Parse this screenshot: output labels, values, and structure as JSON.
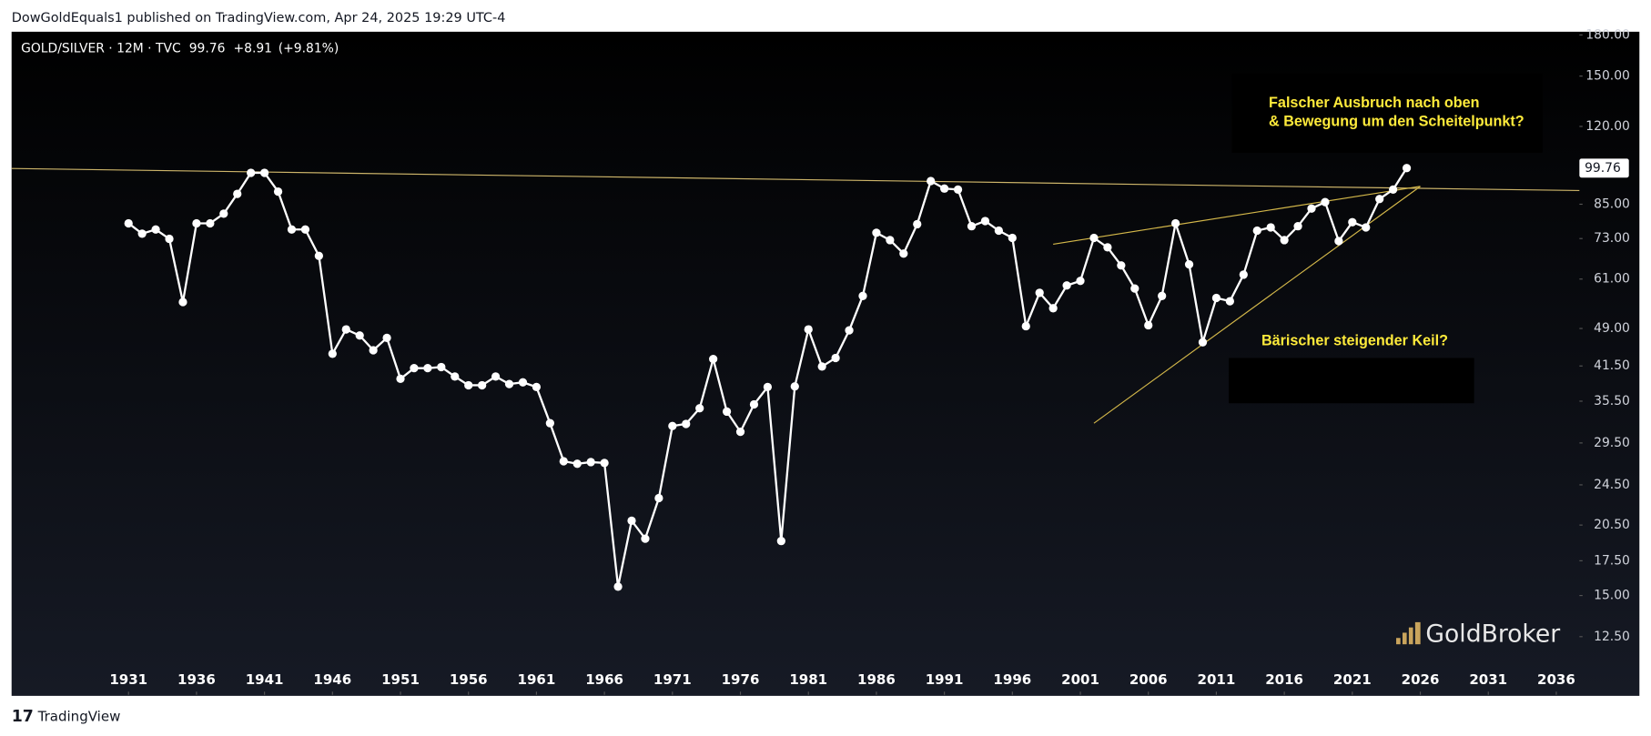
{
  "header": "DowGoldEquals1 published on TradingView.com, Apr 24, 2025 19:29 UTC-4",
  "footer": "TradingView",
  "watermark": "GoldBroker",
  "chart_data": {
    "type": "line",
    "log_scale": true,
    "grid": false,
    "legend": {
      "symbol": "GOLD/SILVER · 12M · TVC",
      "change": "+8.91",
      "change_pct": "(+9.81%)"
    },
    "annotations": [
      "Falscher Ausbruch nach oben",
      "& Bewegung um den Scheitelpunkt?",
      "Bärischer steigender Keil?"
    ],
    "xlim": [
      1922.4,
      2037.7
    ],
    "xticks": [
      1931,
      1936,
      1941,
      1946,
      1951,
      1956,
      1961,
      1966,
      1971,
      1976,
      1981,
      1986,
      1991,
      1996,
      2001,
      2006,
      2011,
      2016,
      2021,
      2026,
      2031,
      2036
    ],
    "ylim": [
      9.66,
      182.6
    ],
    "yticks": [
      {
        "value": 12.5,
        "label": "12.50"
      },
      {
        "value": 15,
        "label": "15.00"
      },
      {
        "value": 17.5,
        "label": "17.50"
      },
      {
        "value": 20.5,
        "label": "20.50"
      },
      {
        "value": 24.5,
        "label": "24.50"
      },
      {
        "value": 29.5,
        "label": "29.50"
      },
      {
        "value": 35.5,
        "label": "35.50"
      },
      {
        "value": 41.5,
        "label": "41.50"
      },
      {
        "value": 49,
        "label": "49.00"
      },
      {
        "value": 61,
        "label": "61.00"
      },
      {
        "value": 73,
        "label": "73.00"
      },
      {
        "value": 85,
        "label": "85.00"
      },
      {
        "value": 120,
        "label": "120.00"
      },
      {
        "value": 150,
        "label": "150.00"
      },
      {
        "value": 180,
        "label": "180.00"
      }
    ],
    "series": [
      {
        "name": "GOLD/SILVER",
        "color": "#ffffff",
        "x": [
          1931,
          1932,
          1933,
          1934,
          1935,
          1936,
          1937,
          1938,
          1939,
          1940,
          1941,
          1942,
          1943,
          1944,
          1945,
          1946,
          1947,
          1948,
          1949,
          1950,
          1951,
          1952,
          1953,
          1954,
          1955,
          1956,
          1957,
          1958,
          1959,
          1960,
          1961,
          1962,
          1963,
          1964,
          1965,
          1966,
          1967,
          1968,
          1969,
          1970,
          1971,
          1972,
          1973,
          1974,
          1975,
          1976,
          1977,
          1978,
          1979,
          1980,
          1981,
          1982,
          1983,
          1984,
          1985,
          1986,
          1987,
          1988,
          1989,
          1990,
          1991,
          1992,
          1993,
          1994,
          1995,
          1996,
          1997,
          1998,
          1999,
          2000,
          2001,
          2002,
          2003,
          2004,
          2005,
          2006,
          2007,
          2008,
          2009,
          2010,
          2011,
          2012,
          2013,
          2014,
          2015,
          2016,
          2017,
          2018,
          2019,
          2020,
          2021,
          2022,
          2023,
          2024,
          2025
        ],
        "values": [
          78.1,
          74.6,
          76.0,
          72.9,
          55.1,
          78.1,
          78.1,
          81.5,
          89.0,
          97.7,
          97.7,
          89.9,
          76.0,
          76.0,
          67.6,
          43.8,
          48.8,
          47.5,
          44.5,
          47.0,
          39.2,
          41.1,
          41.1,
          41.3,
          39.6,
          38.1,
          38.1,
          39.6,
          38.3,
          38.6,
          37.8,
          32.2,
          27.2,
          26.9,
          27.1,
          27.0,
          15.6,
          20.9,
          19.3,
          23.1,
          31.8,
          32.1,
          34.4,
          42.8,
          33.9,
          31.0,
          35.0,
          37.8,
          19.1,
          37.9,
          48.8,
          41.4,
          43.0,
          48.6,
          56.6,
          74.9,
          72.5,
          68.3,
          77.8,
          94.2,
          91.1,
          90.7,
          77.1,
          78.9,
          75.6,
          73.2,
          49.5,
          57.4,
          53.6,
          59.3,
          60.5,
          73.2,
          70.2,
          64.8,
          58.5,
          49.7,
          56.6,
          78.1,
          65.1,
          46.1,
          56.1,
          55.3,
          62.2,
          75.6,
          76.7,
          72.5,
          77.1,
          83.4,
          85.8,
          72.2,
          78.5,
          76.7,
          87.0,
          90.7,
          99.76
        ]
      }
    ],
    "trendlines": [
      {
        "color": "#cdb56a",
        "x": [
          1922.4,
          2037.7
        ],
        "values": [
          99.6,
          90.3
        ]
      },
      {
        "color": "#d4b84a",
        "x": [
          1999.0,
          2026.0
        ],
        "values": [
          71.2,
          92.0
        ]
      },
      {
        "color": "#d4b84a",
        "x": [
          2002.0,
          2026.0
        ],
        "values": [
          32.2,
          92.0
        ]
      }
    ]
  }
}
